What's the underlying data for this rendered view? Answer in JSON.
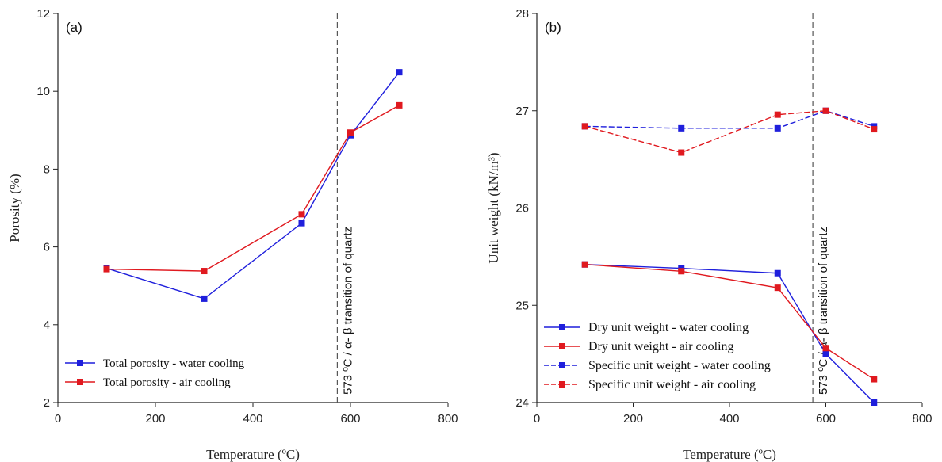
{
  "colors": {
    "blue": "#1f1fdc",
    "red": "#e0191f",
    "axis": "#222222",
    "vline": "#555555"
  },
  "chart_data": [
    {
      "type": "line",
      "panel_label": "(a)",
      "xlabel": "Temperature (ºC)",
      "ylabel": "Porosity (%)",
      "xlim": [
        0,
        800
      ],
      "ylim": [
        2,
        12
      ],
      "xticks": [
        0,
        200,
        400,
        600,
        800
      ],
      "yticks": [
        2,
        4,
        6,
        8,
        10,
        12
      ],
      "x": [
        100,
        300,
        500,
        600,
        700
      ],
      "vline": {
        "x": 573,
        "label": "573 ºC / α- β transition of quartz"
      },
      "legend_position": "bottom-left",
      "series": [
        {
          "name": "Total porosity - water cooling",
          "color": "#1f1fdc",
          "dashed": false,
          "values": [
            5.45,
            4.67,
            6.61,
            8.87,
            10.49
          ]
        },
        {
          "name": "Total porosity - air cooling",
          "color": "#e0191f",
          "dashed": false,
          "values": [
            5.43,
            5.38,
            6.84,
            8.94,
            9.64
          ]
        }
      ]
    },
    {
      "type": "line",
      "panel_label": "(b)",
      "xlabel": "Temperature (ºC)",
      "ylabel": "Unit weight (kN/m³)",
      "xlim": [
        0,
        800
      ],
      "ylim": [
        24,
        28
      ],
      "xticks": [
        0,
        200,
        400,
        600,
        800
      ],
      "yticks": [
        24,
        25,
        26,
        27,
        28
      ],
      "x": [
        100,
        300,
        500,
        600,
        700
      ],
      "vline": {
        "x": 573,
        "label": "573 ºC / α- β transition of quartz"
      },
      "legend_position": "bottom-left",
      "series": [
        {
          "name": "Dry unit weight  - water cooling",
          "color": "#1f1fdc",
          "dashed": false,
          "values": [
            25.42,
            25.38,
            25.33,
            24.5,
            24.0
          ]
        },
        {
          "name": "Dry unit weight - air cooling",
          "color": "#e0191f",
          "dashed": false,
          "values": [
            25.42,
            25.35,
            25.18,
            24.56,
            24.24
          ]
        },
        {
          "name": "Specific unit weight  - water cooling",
          "color": "#1f1fdc",
          "dashed": true,
          "values": [
            26.84,
            26.82,
            26.82,
            27.0,
            26.84
          ]
        },
        {
          "name": "Specific unit weight - air cooling",
          "color": "#e0191f",
          "dashed": true,
          "values": [
            26.84,
            26.57,
            26.96,
            27.0,
            26.81
          ]
        }
      ]
    }
  ]
}
